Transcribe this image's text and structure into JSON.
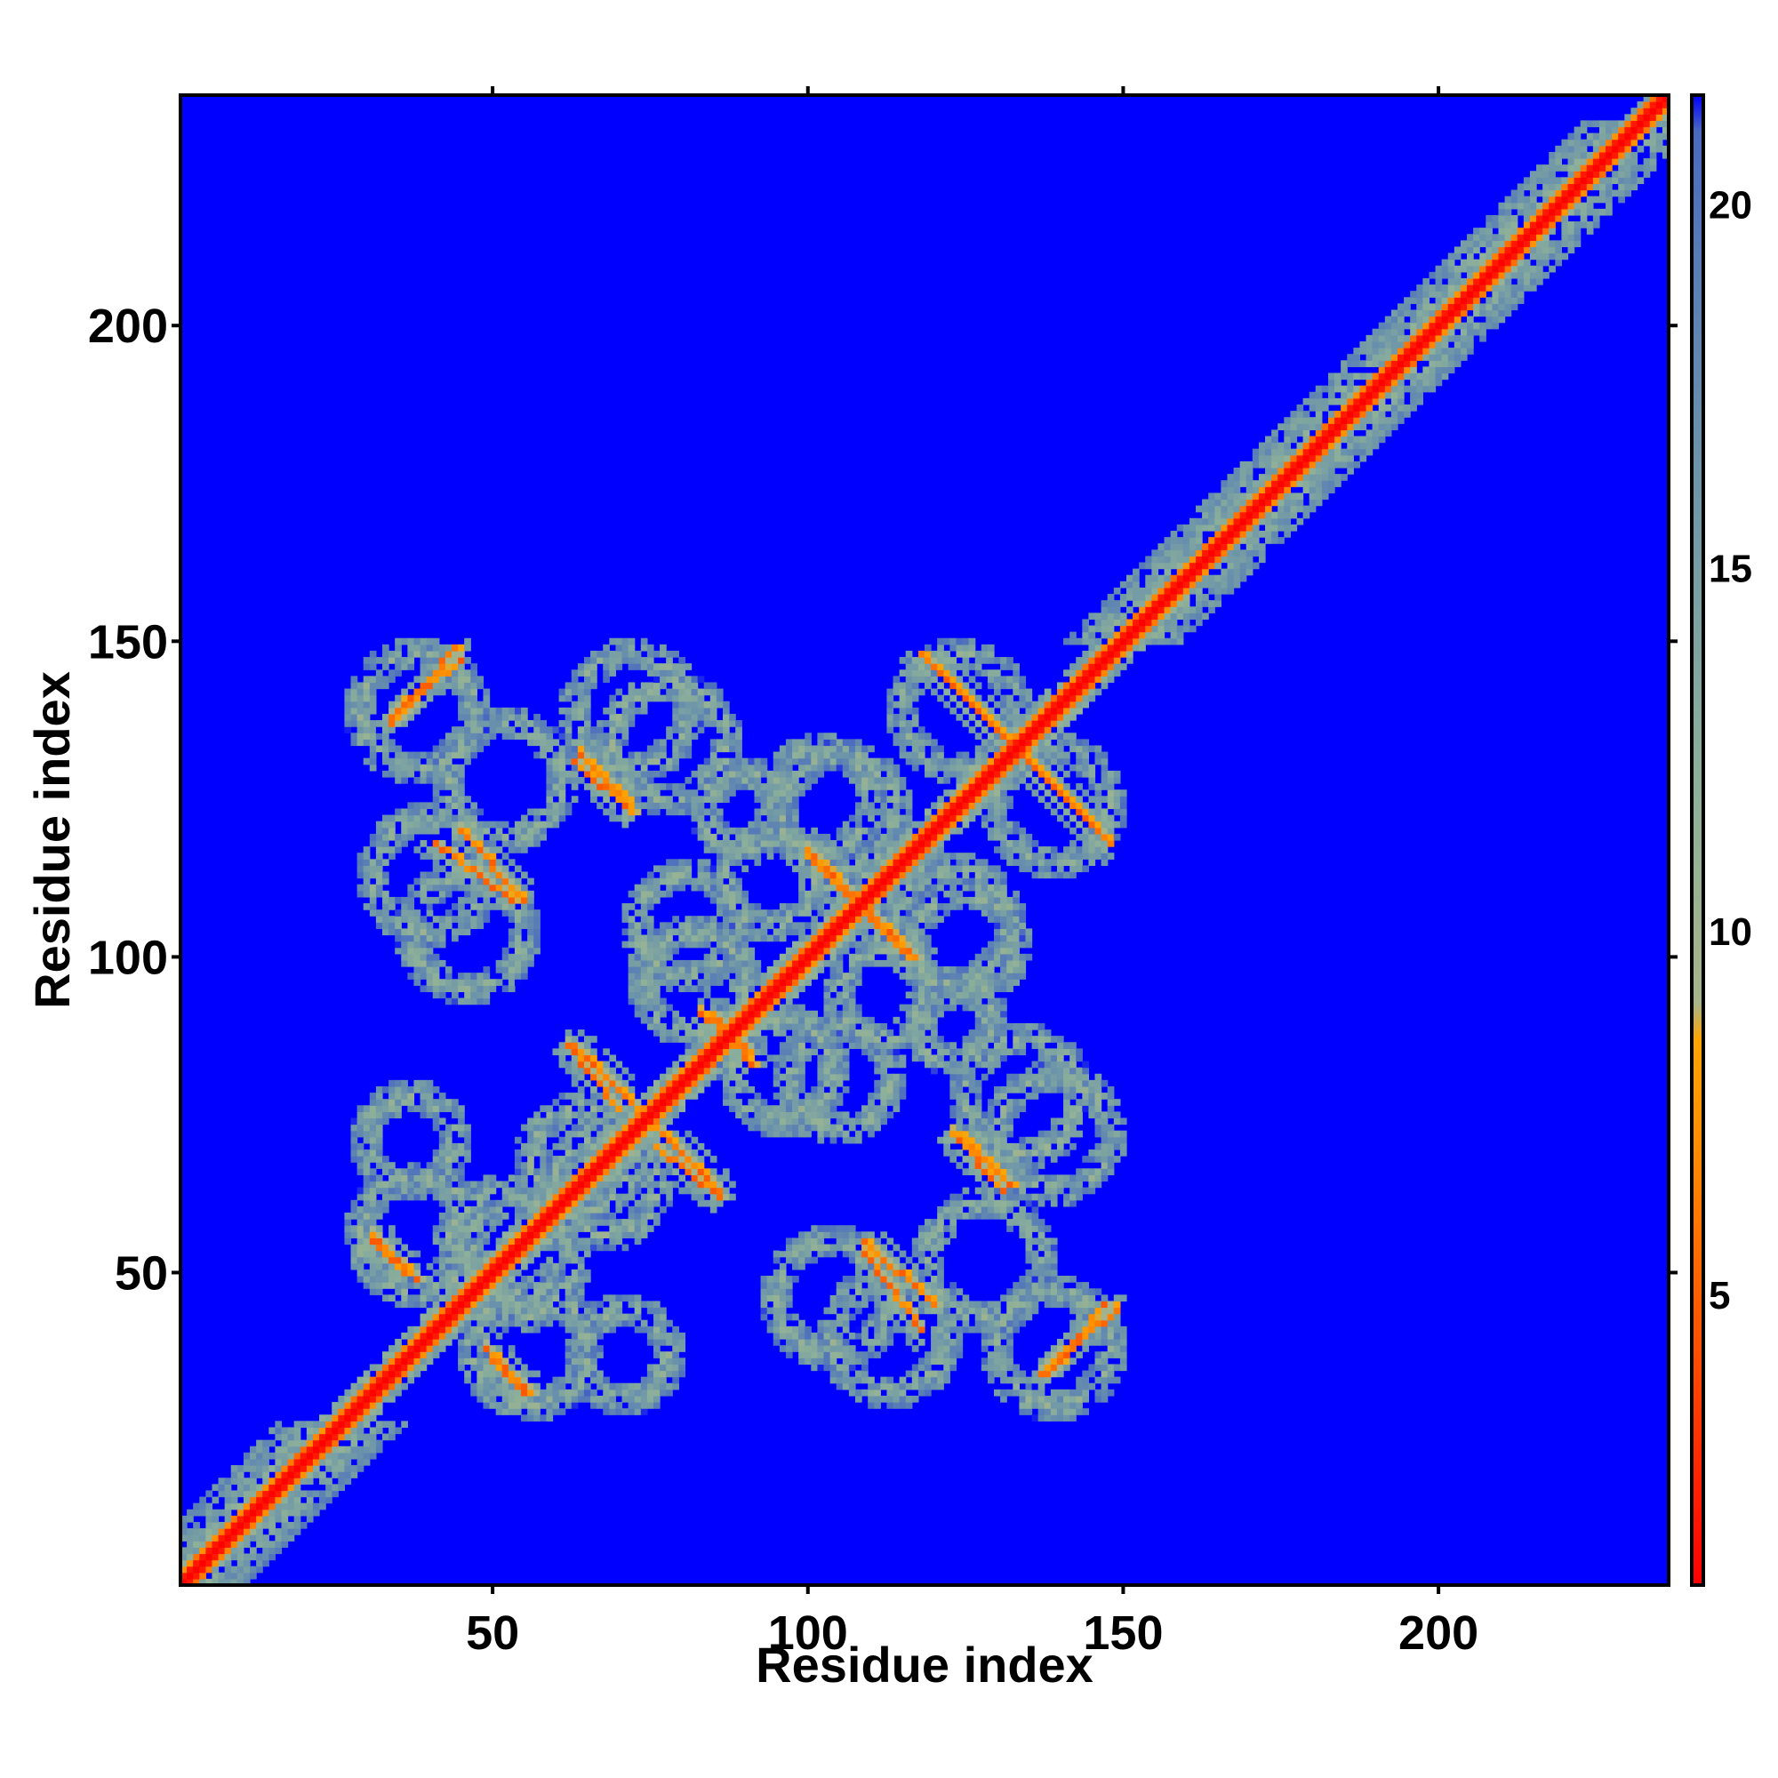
{
  "chart_data": {
    "type": "heatmap",
    "title": "",
    "xlabel": "Residue index",
    "ylabel": "Residue index",
    "xlim": [
      1,
      236
    ],
    "ylim": [
      1,
      236
    ],
    "x_ticks": [
      50,
      100,
      150,
      200
    ],
    "y_ticks": [
      50,
      100,
      150,
      200
    ],
    "colorbar": {
      "range": [
        1,
        21.5
      ],
      "ticks": [
        5,
        10,
        15,
        20
      ],
      "stops": [
        {
          "value": 1,
          "color": "#ff0000"
        },
        {
          "value": 4,
          "color": "#ff4a00"
        },
        {
          "value": 7,
          "color": "#ff8c00"
        },
        {
          "value": 8.5,
          "color": "#ffa500"
        },
        {
          "value": 9,
          "color": "#a8b48a"
        },
        {
          "value": 12,
          "color": "#8db09a"
        },
        {
          "value": 16,
          "color": "#6f97a8"
        },
        {
          "value": 19,
          "color": "#5a7fb5"
        },
        {
          "value": 21,
          "color": "#4a6ac0"
        },
        {
          "value": 21.5,
          "color": "#0000ff"
        }
      ]
    },
    "background_value": 21.5,
    "background_color": "#0000ff",
    "features": {
      "diagonal": {
        "from": 1,
        "to": 236,
        "core_value": 2,
        "halo_value": 11
      },
      "diagonal_halo_widths": [
        {
          "from": 1,
          "to": 26,
          "half_width": 10
        },
        {
          "from": 27,
          "to": 149,
          "half_width": 4
        },
        {
          "from": 150,
          "to": 232,
          "half_width": 9
        },
        {
          "from": 233,
          "to": 236,
          "half_width": 3
        }
      ],
      "contact_rings": [
        {
          "x": 38,
          "y": 139,
          "r": 9
        },
        {
          "x": 72,
          "y": 139,
          "r": 9
        },
        {
          "x": 102,
          "y": 125,
          "r": 8
        },
        {
          "x": 124,
          "y": 139,
          "r": 9
        },
        {
          "x": 46,
          "y": 104,
          "r": 9
        },
        {
          "x": 81,
          "y": 105,
          "r": 8
        },
        {
          "x": 123,
          "y": 105,
          "r": 9
        },
        {
          "x": 54,
          "y": 52,
          "r": 9
        },
        {
          "x": 68,
          "y": 64,
          "r": 8
        },
        {
          "x": 56,
          "y": 38,
          "r": 9
        },
        {
          "x": 113,
          "y": 40,
          "r": 9
        },
        {
          "x": 128,
          "y": 52,
          "r": 9
        },
        {
          "x": 134,
          "y": 78,
          "r": 9
        },
        {
          "x": 96,
          "y": 82,
          "r": 8
        },
        {
          "x": 112,
          "y": 94,
          "r": 7
        },
        {
          "x": 37,
          "y": 71,
          "r": 7
        },
        {
          "x": 90,
          "y": 123,
          "r": 6
        }
      ],
      "strands": [
        {
          "x0": 34,
          "y0": 137,
          "x1": 44,
          "y1": 149
        },
        {
          "x0": 63,
          "y0": 131,
          "x1": 72,
          "y1": 123
        },
        {
          "x0": 118,
          "y0": 148,
          "x1": 145,
          "y1": 121
        },
        {
          "x0": 41,
          "y0": 118,
          "x1": 53,
          "y1": 109
        },
        {
          "x0": 100,
          "y0": 116,
          "x1": 117,
          "y1": 100
        },
        {
          "x0": 63,
          "y0": 86,
          "x1": 73,
          "y1": 76
        },
        {
          "x0": 76,
          "y0": 70,
          "x1": 86,
          "y1": 62
        },
        {
          "x0": 124,
          "y0": 72,
          "x1": 132,
          "y1": 64
        },
        {
          "x0": 31,
          "y0": 55,
          "x1": 38,
          "y1": 49
        },
        {
          "x0": 50,
          "y0": 36,
          "x1": 56,
          "y1": 31
        },
        {
          "x0": 109,
          "y0": 55,
          "x1": 120,
          "y1": 45
        },
        {
          "x0": 138,
          "y0": 34,
          "x1": 147,
          "y1": 45
        },
        {
          "x0": 85,
          "y0": 91,
          "x1": 91,
          "y1": 83
        }
      ]
    }
  }
}
